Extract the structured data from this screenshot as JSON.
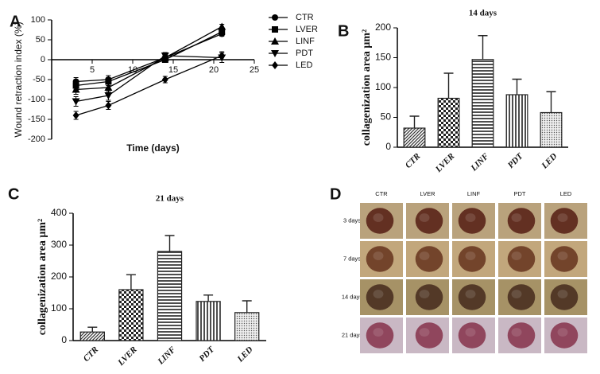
{
  "chart_data": [
    {
      "type": "line",
      "panel_label": "A",
      "xlabel": "Time (days)",
      "ylabel": "Wound retraction index (%)",
      "x": [
        3,
        7,
        14,
        21
      ],
      "xlim": [
        0,
        25
      ],
      "xticks": [
        5,
        10,
        15,
        20,
        25
      ],
      "ylim": [
        -200,
        100
      ],
      "yticks": [
        -200,
        -150,
        -100,
        -50,
        0,
        50,
        100
      ],
      "series": [
        {
          "name": "CTR",
          "color": "#000000",
          "marker": "circle",
          "values": [
            -55,
            -50,
            5,
            65
          ],
          "errors": [
            10,
            10,
            6,
            6
          ]
        },
        {
          "name": "LVER",
          "color": "#000000",
          "marker": "square",
          "values": [
            -65,
            -55,
            0,
            70
          ],
          "errors": [
            10,
            10,
            6,
            6
          ]
        },
        {
          "name": "LINF",
          "color": "#000000",
          "marker": "triangle-up",
          "values": [
            -75,
            -70,
            5,
            83
          ],
          "errors": [
            12,
            12,
            6,
            6
          ]
        },
        {
          "name": "PDT",
          "color": "#000000",
          "marker": "triangle-down",
          "values": [
            -105,
            -90,
            10,
            5
          ],
          "errors": [
            12,
            12,
            8,
            12
          ]
        },
        {
          "name": "LED",
          "color": "#000000",
          "marker": "diamond",
          "values": [
            -140,
            -115,
            -50,
            10
          ],
          "errors": [
            10,
            10,
            8,
            10
          ]
        }
      ]
    },
    {
      "type": "bar",
      "panel_label": "B",
      "title": "14 days",
      "ylabel": "collagenization area μm²",
      "categories": [
        "CTR",
        "LVER",
        "LINF",
        "PDT",
        "LED"
      ],
      "values": [
        32,
        82,
        147,
        88,
        58
      ],
      "errors": [
        20,
        42,
        40,
        26,
        35
      ],
      "ylim": [
        0,
        200
      ],
      "yticks": [
        0,
        50,
        100,
        150,
        200
      ],
      "color": "#222222"
    },
    {
      "type": "bar",
      "panel_label": "C",
      "title": "21 days",
      "ylabel": "collagenization area μm²",
      "categories": [
        "CTR",
        "LVER",
        "LINF",
        "PDT",
        "LED"
      ],
      "values": [
        27,
        160,
        280,
        123,
        88
      ],
      "errors": [
        15,
        47,
        50,
        20,
        37
      ],
      "ylim": [
        0,
        400
      ],
      "yticks": [
        0,
        100,
        200,
        300,
        400
      ],
      "color": "#222222"
    }
  ],
  "photo_grid": {
    "panel_label": "D",
    "columns": [
      "CTR",
      "LVER",
      "LINF",
      "PDT",
      "LED"
    ],
    "rows": [
      "3 days",
      "7 days",
      "14 days",
      "21 days"
    ]
  }
}
